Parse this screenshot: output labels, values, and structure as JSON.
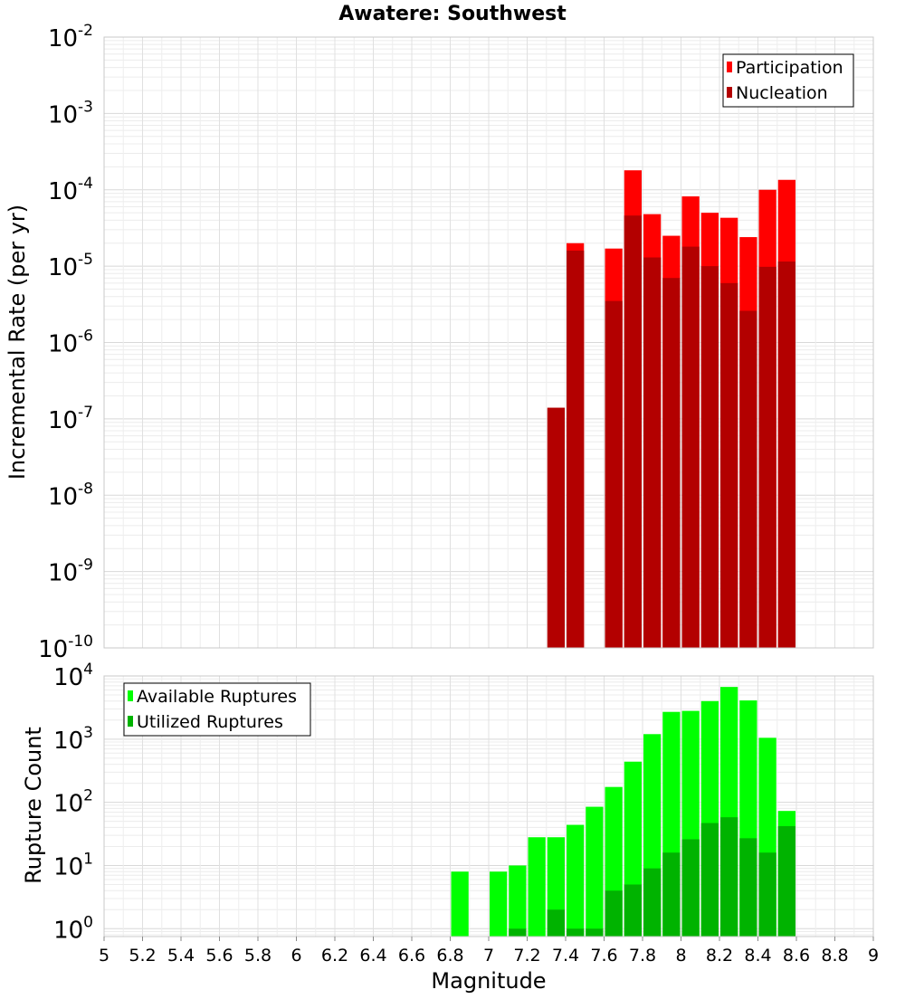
{
  "chart_data": [
    {
      "type": "bar",
      "title": "Awatere: Southwest",
      "xlabel": "",
      "ylabel": "Incremental Rate (per yr)",
      "xlim": [
        5,
        9
      ],
      "ylim": [
        1e-10,
        0.01
      ],
      "yscale": "log",
      "grid": true,
      "legend_position": "top-right",
      "bin_width": 0.1,
      "series": [
        {
          "name": "Participation",
          "color": "#ff0000",
          "x": [
            7.45,
            7.65,
            7.75,
            7.85,
            7.95,
            8.05,
            8.15,
            8.25,
            8.35,
            8.45,
            8.55
          ],
          "values": [
            2e-05,
            1.7e-05,
            0.00018,
            4.8e-05,
            2.5e-05,
            8.2e-05,
            5e-05,
            4.3e-05,
            2.4e-05,
            0.0001,
            0.000135
          ]
        },
        {
          "name": "Nucleation",
          "color": "#b30000",
          "x": [
            7.35,
            7.45,
            7.65,
            7.75,
            7.85,
            7.95,
            8.05,
            8.15,
            8.25,
            8.35,
            8.45,
            8.55
          ],
          "values": [
            1.4e-07,
            1.6e-05,
            3.5e-06,
            4.6e-05,
            1.3e-05,
            7e-06,
            1.8e-05,
            1e-05,
            6e-06,
            2.6e-06,
            9.8e-06,
            1.15e-05
          ]
        }
      ],
      "y_ticks": [
        {
          "base": "10",
          "exp": "-10",
          "value": 1e-10
        },
        {
          "base": "10",
          "exp": "-9",
          "value": 1e-09
        },
        {
          "base": "10",
          "exp": "-8",
          "value": 1e-08
        },
        {
          "base": "10",
          "exp": "-7",
          "value": 1e-07
        },
        {
          "base": "10",
          "exp": "-6",
          "value": 1e-06
        },
        {
          "base": "10",
          "exp": "-5",
          "value": 1e-05
        },
        {
          "base": "10",
          "exp": "-4",
          "value": 0.0001
        },
        {
          "base": "10",
          "exp": "-3",
          "value": 0.001
        },
        {
          "base": "10",
          "exp": "-2",
          "value": 0.01
        }
      ]
    },
    {
      "type": "bar",
      "title": "",
      "xlabel": "Magnitude",
      "ylabel": "Rupture Count",
      "xlim": [
        5,
        9
      ],
      "ylim": [
        0.75,
        10000
      ],
      "yscale": "log",
      "grid": true,
      "legend_position": "top-left",
      "bin_width": 0.1,
      "x_ticks": [
        "5",
        "5.2",
        "5.4",
        "5.6",
        "5.8",
        "6",
        "6.2",
        "6.4",
        "6.6",
        "6.8",
        "7",
        "7.2",
        "7.4",
        "7.6",
        "7.8",
        "8",
        "8.2",
        "8.4",
        "8.6",
        "8.8",
        "9"
      ],
      "series": [
        {
          "name": "Available Ruptures",
          "color": "#00ff00",
          "x": [
            6.85,
            7.05,
            7.15,
            7.25,
            7.35,
            7.45,
            7.55,
            7.65,
            7.75,
            7.85,
            7.95,
            8.05,
            8.15,
            8.25,
            8.35,
            8.45,
            8.55
          ],
          "values": [
            8,
            8,
            10,
            28,
            28,
            44,
            85,
            175,
            440,
            1200,
            2700,
            2800,
            4000,
            6700,
            4100,
            1050,
            73
          ]
        },
        {
          "name": "Utilized Ruptures",
          "color": "#00b300",
          "x": [
            7.15,
            7.35,
            7.45,
            7.55,
            7.65,
            7.75,
            7.85,
            7.95,
            8.05,
            8.15,
            8.25,
            8.35,
            8.45,
            8.55
          ],
          "values": [
            1,
            2,
            1,
            1,
            4,
            5,
            9,
            16,
            26,
            47,
            58,
            27,
            16,
            42
          ]
        }
      ],
      "y_ticks": [
        {
          "base": "10",
          "exp": "0",
          "value": 1
        },
        {
          "base": "10",
          "exp": "1",
          "value": 10
        },
        {
          "base": "10",
          "exp": "2",
          "value": 100
        },
        {
          "base": "10",
          "exp": "3",
          "value": 1000
        },
        {
          "base": "10",
          "exp": "4",
          "value": 10000
        }
      ]
    }
  ]
}
